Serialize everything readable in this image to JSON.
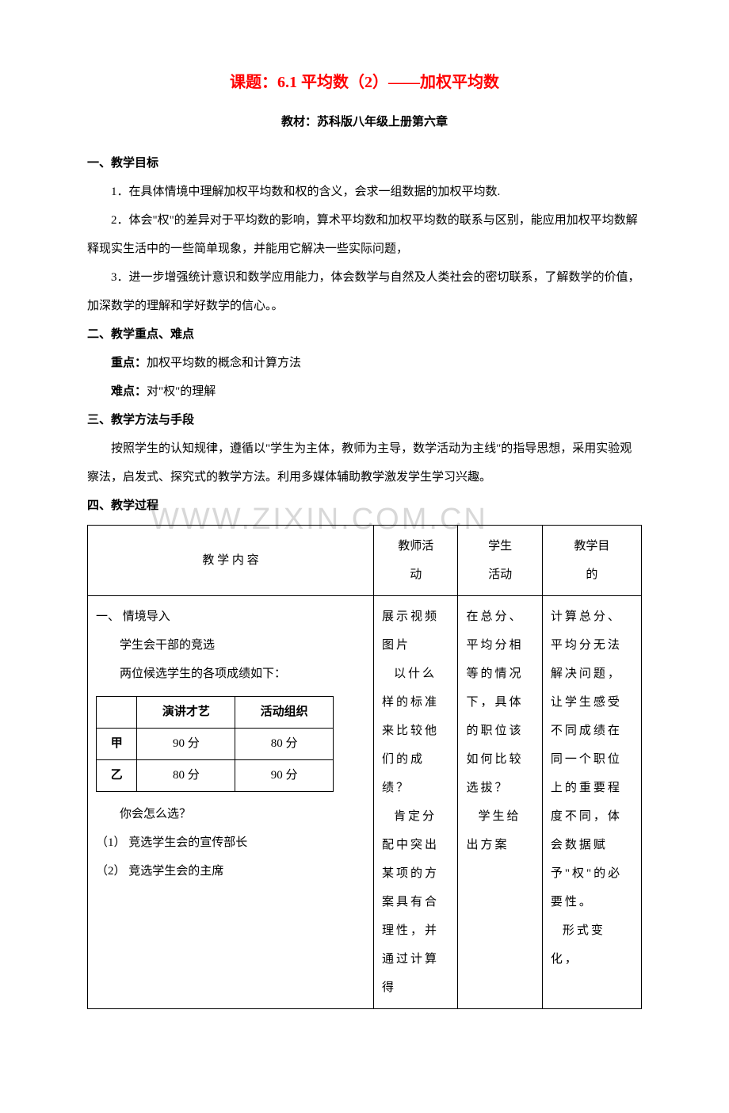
{
  "title": "课题：6.1 平均数（2）——加权平均数",
  "subtitle": "教材：苏科版八年级上册第六章",
  "section1": {
    "heading": "一、教学目标",
    "p1": "1．在具体情境中理解加权平均数和权的含义，会求一组数据的加权平均数.",
    "p2": "2．体会\"权\"的差异对于平均数的影响，算术平均数和加权平均数的联系与区别，能应用加权平均数解释现实生活中的一些简单现象，并能用它解决一些实际问题，",
    "p3": "3．进一步增强统计意识和数学应用能力，体会数学与自然及人类社会的密切联系，了解数学的价值，加深数学的理解和学好数学的信心。。"
  },
  "section2": {
    "heading": "二、教学重点、难点",
    "p1_label": "重点：",
    "p1_text": "加权平均数的概念和计算方法",
    "p2_label": "难点：",
    "p2_text": "对\"权\"的理解"
  },
  "section3": {
    "heading": "三、教学方法与手段",
    "p1": "按照学生的认知规律，遵循以\"学生为主体，教师为主导，数学活动为主线\"的指导思想，采用实验观察法，启发式、探究式的教学方法。利用多媒体辅助教学激发学生学习兴趣。"
  },
  "section4": {
    "heading": "四、教学过程"
  },
  "table": {
    "head": {
      "c1a": "教 学 内 容",
      "c2a": "教师活",
      "c2b": "动",
      "c3a": "学生",
      "c3b": "活动",
      "c4a": "教学目",
      "c4b": "的"
    },
    "row1": {
      "content": {
        "l1": "一、 情境导入",
        "l2": "学生会干部的竞选",
        "l3": "两位候选学生的各项成绩如下：",
        "inner": {
          "h_blank": "",
          "h1": "演讲才艺",
          "h2": "活动组织",
          "r1_name": "甲",
          "r1_v1": "90 分",
          "r1_v2": "80 分",
          "r2_name": "乙",
          "r2_v1": "80 分",
          "r2_v2": "90 分"
        },
        "l4": "你会怎么选？",
        "l5": "（1）  竞选学生会的宣传部长",
        "l6": "（2）  竞选学生会的主席"
      },
      "teacher": "展示视频图片\n以什么样的标准来比较他们的成绩？\n肯定分配中突出某项的方案具有合理性，并通过计算得",
      "student": "在总分、平均分相等的情况下，具体的职位该如何比较选拔？\n学生给出方案",
      "goal": "计算总分、平均分无法解决问题，让学生感受不同成绩在同一个职位上的重要程度不同，体会数据赋予\"权\"的必要性。\n形式变化，"
    }
  },
  "watermark": "WWW.ZIXIN.COM.CN"
}
